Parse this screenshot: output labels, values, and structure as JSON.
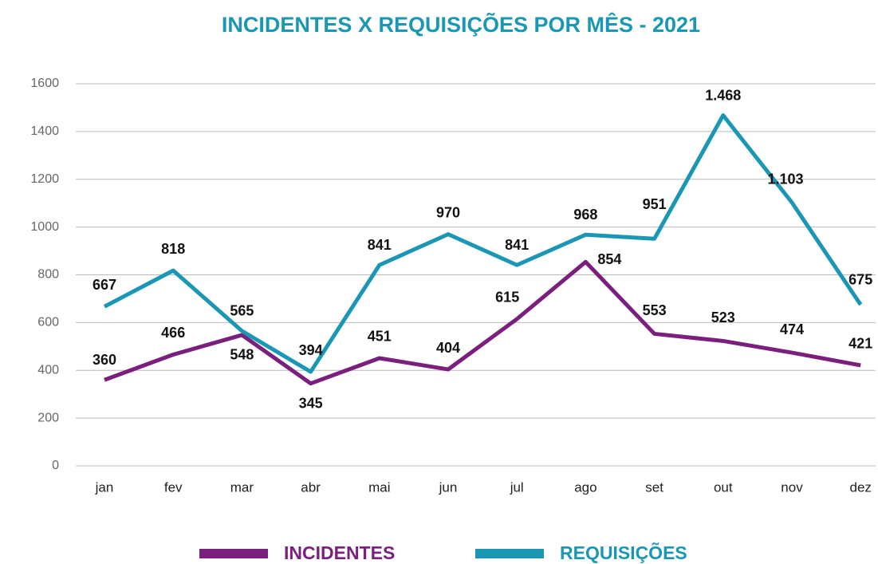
{
  "chart_data": {
    "type": "line",
    "title": "INCIDENTES X REQUISIÇÕES POR MÊS - 2021",
    "categories": [
      "jan",
      "fev",
      "mar",
      "abr",
      "mai",
      "jun",
      "jul",
      "ago",
      "set",
      "out",
      "nov",
      "dez"
    ],
    "series": [
      {
        "name": "INCIDENTES",
        "color": "#7b1f7e",
        "values": [
          360,
          466,
          548,
          345,
          451,
          404,
          615,
          854,
          553,
          523,
          474,
          421
        ]
      },
      {
        "name": "REQUISIÇÕES",
        "color": "#1a97b3",
        "values": [
          667,
          818,
          565,
          394,
          841,
          970,
          841,
          968,
          951,
          1468,
          1103,
          675
        ],
        "value_labels": [
          "667",
          "818",
          "565",
          "394",
          "841",
          "970",
          "841",
          "968",
          "951",
          "1.468",
          "1.103",
          "675"
        ]
      }
    ],
    "ylim": [
      0,
      1600
    ],
    "yticks": [
      0,
      200,
      400,
      600,
      800,
      1000,
      1200,
      1400,
      1600
    ],
    "grid": true,
    "legend": "bottom"
  }
}
